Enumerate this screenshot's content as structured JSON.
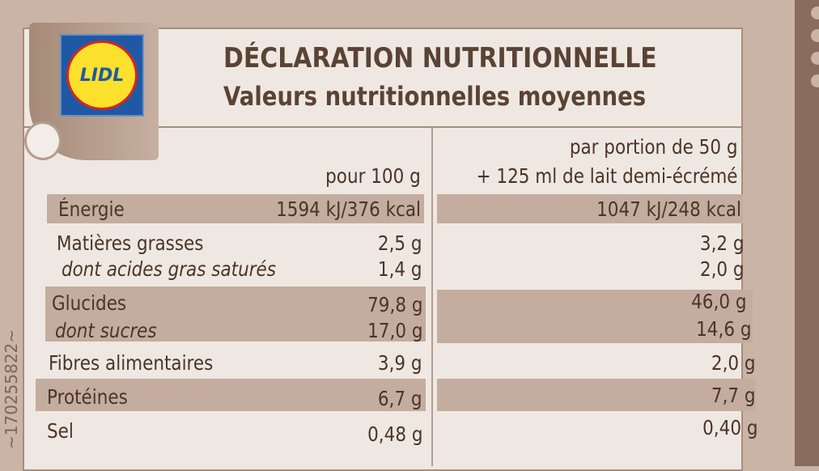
{
  "logo": {
    "text": "LIDL"
  },
  "header": {
    "title": "DÉCLARATION NUTRITIONNELLE",
    "subtitle": "Valeurs nutritionnelles moyennes"
  },
  "columns": {
    "per100": "pour 100 g",
    "portion_line1": "par portion de 50 g",
    "portion_line2": "+ 125 ml de lait demi-écrémé"
  },
  "rows": [
    {
      "label": "Énergie",
      "per100": "1594 kJ/376 kcal",
      "portion": "1047 kJ/248 kcal"
    },
    {
      "label": "Matières grasses",
      "per100": "2,5 g",
      "portion": "3,2 g"
    },
    {
      "label": "dont acides gras saturés",
      "per100": "1,4 g",
      "portion": "2,0 g"
    },
    {
      "label": "Glucides",
      "per100": "79,8 g",
      "portion": "46,0 g"
    },
    {
      "label": "dont sucres",
      "per100": "17,0 g",
      "portion": "14,6 g"
    },
    {
      "label": "Fibres alimentaires",
      "per100": "3,9 g",
      "portion": "2,0 g"
    },
    {
      "label": "Protéines",
      "per100": "6,7 g",
      "portion": "7,7 g"
    },
    {
      "label": "Sel",
      "per100": "0,48 g",
      "portion": "0,40 g"
    }
  ],
  "side_code": "~170255822~"
}
